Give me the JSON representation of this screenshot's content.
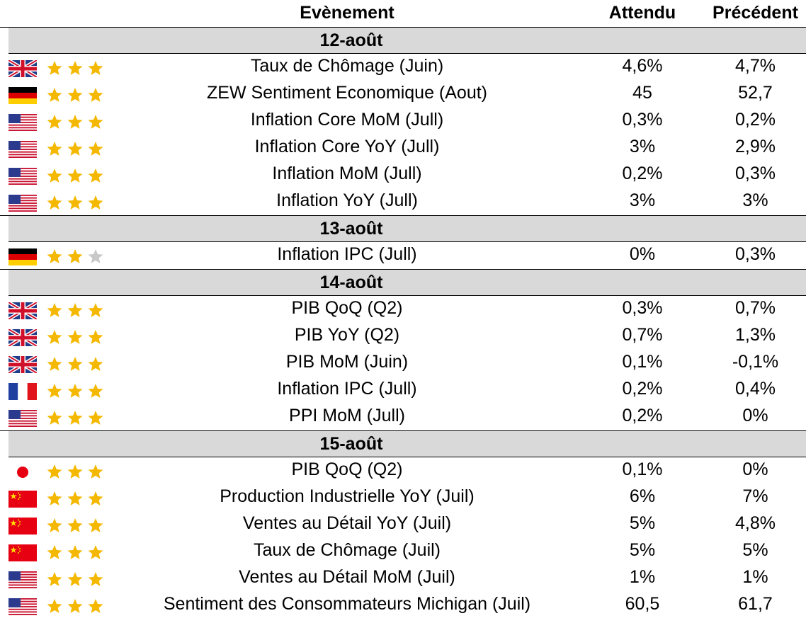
{
  "header": {
    "event": "Evènement",
    "expected": "Attendu",
    "previous": "Précédent"
  },
  "colors": {
    "star_on": "#f5b800",
    "star_off": "#c8c8c8",
    "date_bg": "#d9d9d9"
  },
  "groups": [
    {
      "date": "12-août",
      "rows": [
        {
          "flag": "uk-flag-icon",
          "stars": 3,
          "event": "Taux de Chômage (Juin)",
          "expected": "4,6%",
          "previous": "4,7%"
        },
        {
          "flag": "germany-flag-icon",
          "stars": 3,
          "event": "ZEW Sentiment Economique (Aout)",
          "expected": "45",
          "previous": "52,7"
        },
        {
          "flag": "usa-flag-icon",
          "stars": 3,
          "event": "Inflation Core MoM (Jull)",
          "expected": "0,3%",
          "previous": "0,2%"
        },
        {
          "flag": "usa-flag-icon",
          "stars": 3,
          "event": "Inflation Core YoY (Jull)",
          "expected": "3%",
          "previous": "2,9%"
        },
        {
          "flag": "usa-flag-icon",
          "stars": 3,
          "event": "Inflation MoM (Jull)",
          "expected": "0,2%",
          "previous": "0,3%"
        },
        {
          "flag": "usa-flag-icon",
          "stars": 3,
          "event": "Inflation YoY (Jull)",
          "expected": "3%",
          "previous": "3%"
        }
      ]
    },
    {
      "date": "13-août",
      "rows": [
        {
          "flag": "germany-flag-icon",
          "stars": 2,
          "event": "Inflation IPC (Jull)",
          "expected": "0%",
          "previous": "0,3%"
        }
      ]
    },
    {
      "date": "14-août",
      "rows": [
        {
          "flag": "uk-flag-icon",
          "stars": 3,
          "event": "PIB QoQ (Q2)",
          "expected": "0,3%",
          "previous": "0,7%"
        },
        {
          "flag": "uk-flag-icon",
          "stars": 3,
          "event": "PIB YoY (Q2)",
          "expected": "0,7%",
          "previous": "1,3%"
        },
        {
          "flag": "uk-flag-icon",
          "stars": 3,
          "event": "PIB MoM (Juin)",
          "expected": "0,1%",
          "previous": "-0,1%"
        },
        {
          "flag": "france-flag-icon",
          "stars": 3,
          "event": "Inflation IPC (Jull)",
          "expected": "0,2%",
          "previous": "0,4%"
        },
        {
          "flag": "usa-flag-icon",
          "stars": 3,
          "event": "PPI MoM (Jull)",
          "expected": "0,2%",
          "previous": "0%"
        }
      ]
    },
    {
      "date": "15-août",
      "rows": [
        {
          "flag": "japan-flag-icon",
          "stars": 3,
          "event": "PIB QoQ (Q2)",
          "expected": "0,1%",
          "previous": "0%"
        },
        {
          "flag": "china-flag-icon",
          "stars": 3,
          "event": "Production Industrielle YoY (Juil)",
          "expected": "6%",
          "previous": "7%"
        },
        {
          "flag": "china-flag-icon",
          "stars": 3,
          "event": "Ventes au Détail YoY (Juil)",
          "expected": "5%",
          "previous": "4,8%"
        },
        {
          "flag": "china-flag-icon",
          "stars": 3,
          "event": "Taux de Chômage (Juil)",
          "expected": "5%",
          "previous": "5%"
        },
        {
          "flag": "usa-flag-icon",
          "stars": 3,
          "event": "Ventes au Détail MoM (Juil)",
          "expected": "1%",
          "previous": "1%"
        },
        {
          "flag": "usa-flag-icon",
          "stars": 3,
          "event": "Sentiment des Consommateurs Michigan (Juil)",
          "expected": "60,5",
          "previous": "61,7"
        }
      ]
    }
  ]
}
